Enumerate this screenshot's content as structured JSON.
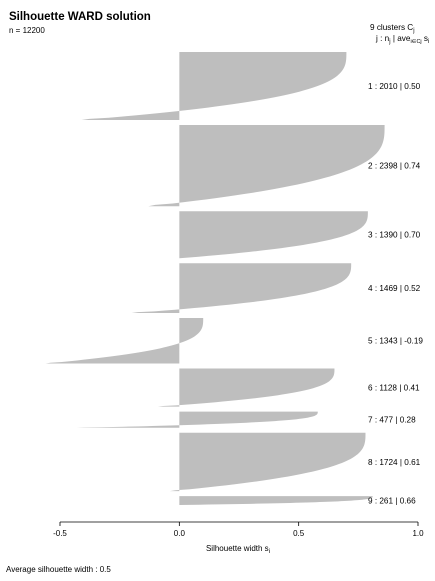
{
  "chart_data": {
    "type": "bar",
    "orientation": "horizontal",
    "title": "Silhouette WARD solution",
    "subtitle": "n = 12200",
    "legend_header": {
      "line1": "9  clusters  C",
      "line1_sub": "j",
      "line2": "j :  n",
      "line2_sub": "j",
      "line2_mid": " | ave",
      "line2_sub2": "i∈Cj",
      "line2_end": "  s",
      "line2_sub3": "i"
    },
    "xlabel": "Silhouette width s",
    "xlabel_sub": "i",
    "xlim": [
      -0.5,
      1.0
    ],
    "xticks": [
      -0.5,
      0.0,
      0.5,
      1.0
    ],
    "xtick_labels": [
      "-0.5",
      "0.0",
      "0.5",
      "1.0"
    ],
    "footer": "Average silhouette width :  0.5",
    "average_silhouette": 0.5,
    "bar_color": "#bebebe",
    "clusters": [
      {
        "id": 1,
        "n": 2010,
        "ave": 0.5,
        "label": "1 :  2010  |  0.50",
        "max_s": 0.7,
        "min_s": -0.41
      },
      {
        "id": 2,
        "n": 2398,
        "ave": 0.74,
        "label": "2 :  2398  |  0.74",
        "max_s": 0.86,
        "min_s": -0.13
      },
      {
        "id": 3,
        "n": 1390,
        "ave": 0.7,
        "label": "3 :  1390  |  0.70",
        "max_s": 0.79,
        "min_s": 0.0
      },
      {
        "id": 4,
        "n": 1469,
        "ave": 0.52,
        "label": "4 :  1469  |  0.52",
        "max_s": 0.72,
        "min_s": -0.2
      },
      {
        "id": 5,
        "n": 1343,
        "ave": -0.19,
        "label": "5 :  1343  |  -0.19",
        "max_s": 0.1,
        "min_s": -0.56
      },
      {
        "id": 6,
        "n": 1128,
        "ave": 0.41,
        "label": "6 :  1128  |  0.41",
        "max_s": 0.65,
        "min_s": -0.09
      },
      {
        "id": 7,
        "n": 477,
        "ave": 0.28,
        "label": "7 :  477  |  0.28",
        "max_s": 0.58,
        "min_s": -0.43
      },
      {
        "id": 8,
        "n": 1724,
        "ave": 0.61,
        "label": "8 :  1724  |  0.61",
        "max_s": 0.78,
        "min_s": -0.04
      },
      {
        "id": 9,
        "n": 261,
        "ave": 0.66,
        "label": "9 :  261  |  0.66",
        "max_s": 0.81,
        "min_s": 0.0
      }
    ]
  }
}
